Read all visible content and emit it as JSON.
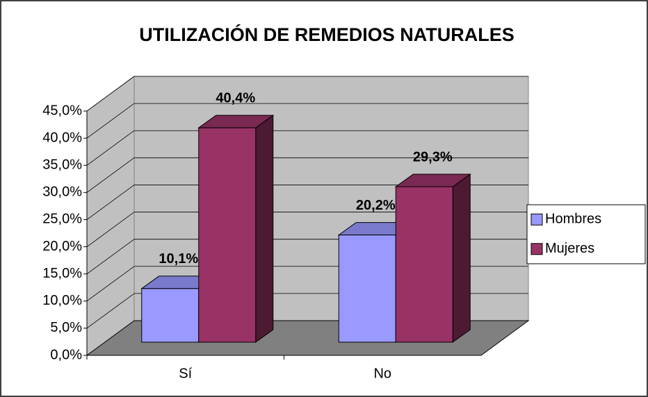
{
  "chart_data": {
    "type": "bar3d",
    "title": "UTILIZACIÓN DE REMEDIOS NATURALES",
    "categories": [
      "Sí",
      "No"
    ],
    "series": [
      {
        "name": "Hombres",
        "color": "#9999ff",
        "values": [
          10.1,
          20.2
        ],
        "value_labels": [
          "10,1%",
          "20,2%"
        ]
      },
      {
        "name": "Mujeres",
        "color": "#993366",
        "values": [
          40.4,
          29.3
        ],
        "value_labels": [
          "40,4%",
          "29,3%"
        ]
      }
    ],
    "ylim": [
      0,
      45
    ],
    "yticks": [
      {
        "value": 0,
        "label": "0,0%"
      },
      {
        "value": 5,
        "label": "5,0%"
      },
      {
        "value": 10,
        "label": "10,0%"
      },
      {
        "value": 15,
        "label": "15,0%"
      },
      {
        "value": 20,
        "label": "20,0%"
      },
      {
        "value": 25,
        "label": "25,0%"
      },
      {
        "value": 30,
        "label": "30,0%"
      },
      {
        "value": 35,
        "label": "35,0%"
      },
      {
        "value": 40,
        "label": "40,0%"
      },
      {
        "value": 45,
        "label": "45,0%"
      }
    ],
    "grid": true,
    "legend": "right"
  }
}
